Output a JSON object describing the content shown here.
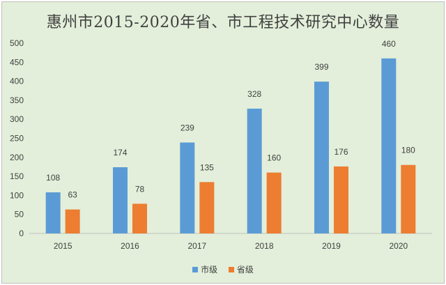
{
  "chart_data": {
    "type": "bar",
    "title": "惠州市2015-2020年省、市工程技术研究中心数量",
    "categories": [
      "2015",
      "2016",
      "2017",
      "2018",
      "2019",
      "2020"
    ],
    "series": [
      {
        "name": "市级",
        "values": [
          108,
          174,
          239,
          328,
          399,
          460
        ],
        "color": "#5b9bd5"
      },
      {
        "name": "省级",
        "values": [
          63,
          78,
          135,
          160,
          176,
          180
        ],
        "color": "#ed7d31"
      }
    ],
    "yticks": [
      0,
      50,
      100,
      150,
      200,
      250,
      300,
      350,
      400,
      450,
      500
    ],
    "ylim": [
      0,
      500
    ],
    "grid": false,
    "legend": "bottom"
  }
}
